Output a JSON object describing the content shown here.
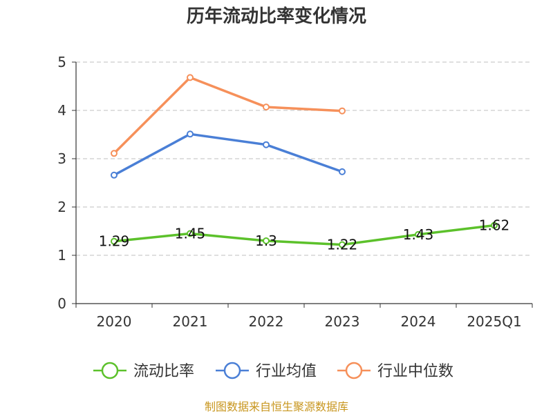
{
  "chart_data": {
    "type": "line",
    "title": "历年流动比率变化情况",
    "categories": [
      "2020",
      "2021",
      "2022",
      "2023",
      "2024",
      "2025Q1"
    ],
    "ylim": [
      0,
      5
    ],
    "yticks": [
      0,
      1,
      2,
      3,
      4,
      5
    ],
    "grid": true,
    "legend_position": "bottom",
    "series": [
      {
        "name": "流动比率",
        "color": "#5cc12b",
        "values": [
          1.29,
          1.45,
          1.3,
          1.22,
          1.43,
          1.62
        ],
        "labels": [
          "1.29",
          "1.45",
          "1.3",
          "1.22",
          "1.43",
          "1.62"
        ]
      },
      {
        "name": "行业均值",
        "color": "#4a7fd6",
        "values": [
          2.66,
          3.51,
          3.29,
          2.73,
          null,
          null
        ]
      },
      {
        "name": "行业中位数",
        "color": "#f6905a",
        "values": [
          3.11,
          4.68,
          4.07,
          3.99,
          null,
          null
        ]
      }
    ],
    "source": "制图数据来自恒生聚源数据库"
  }
}
